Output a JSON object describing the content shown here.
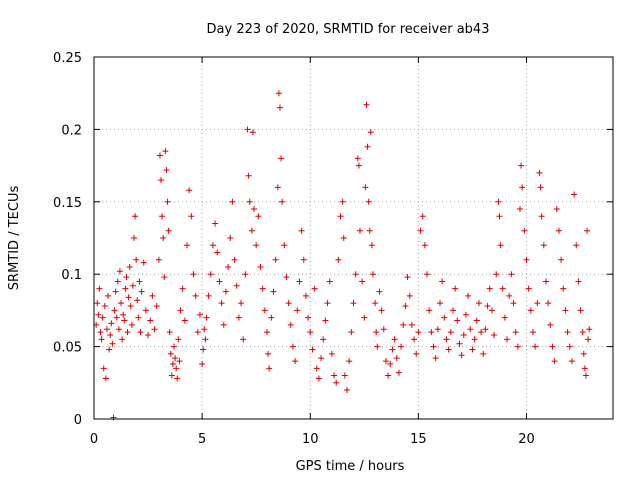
{
  "chart_data": {
    "type": "scatter",
    "title": "Day 223 of 2020, SRMTID for receiver ab43",
    "xlabel": "GPS time / hours",
    "ylabel": "SRMTID / TECUs",
    "xlim": [
      0,
      24
    ],
    "ylim": [
      0,
      0.25
    ],
    "xticks": [
      0,
      5,
      10,
      15,
      20
    ],
    "yticks": [
      0,
      0.05,
      0.1,
      0.15,
      0.2,
      0.25
    ],
    "xtick_labels": [
      "0",
      "5",
      "10",
      "15",
      "20"
    ],
    "ytick_labels": [
      "0",
      "0.05",
      "0.1",
      "0.15",
      "0.2",
      "0.25"
    ],
    "grid": true,
    "marker": "+",
    "color": "#dd0000",
    "series": [
      {
        "name": "SRMTID",
        "points": [
          [
            0.1,
            0.065
          ],
          [
            0.15,
            0.08
          ],
          [
            0.2,
            0.072
          ],
          [
            0.25,
            0.09
          ],
          [
            0.3,
            0.06
          ],
          [
            0.35,
            0.055
          ],
          [
            0.4,
            0.07
          ],
          [
            0.45,
            0.035
          ],
          [
            0.5,
            0.078
          ],
          [
            0.55,
            0.028
          ],
          [
            0.6,
            0.062
          ],
          [
            0.65,
            0.085
          ],
          [
            0.7,
            0.048
          ],
          [
            0.75,
            0.058
          ],
          [
            0.8,
            0.066
          ],
          [
            0.85,
            0.052
          ],
          [
            0.9,
            0.001
          ],
          [
            0.95,
            0.075
          ],
          [
            1.0,
            0.088
          ],
          [
            1.05,
            0.07
          ],
          [
            1.1,
            0.095
          ],
          [
            1.15,
            0.062
          ],
          [
            1.2,
            0.102
          ],
          [
            1.25,
            0.08
          ],
          [
            1.3,
            0.055
          ],
          [
            1.35,
            0.072
          ],
          [
            1.4,
            0.068
          ],
          [
            1.45,
            0.09
          ],
          [
            1.5,
            0.098
          ],
          [
            1.55,
            0.06
          ],
          [
            1.6,
            0.084
          ],
          [
            1.65,
            0.105
          ],
          [
            1.7,
            0.078
          ],
          [
            1.75,
            0.065
          ],
          [
            1.8,
            0.092
          ],
          [
            1.85,
            0.125
          ],
          [
            1.9,
            0.14
          ],
          [
            1.95,
            0.11
          ],
          [
            2.0,
            0.082
          ],
          [
            2.05,
            0.07
          ],
          [
            2.1,
            0.095
          ],
          [
            2.15,
            0.06
          ],
          [
            2.2,
            0.088
          ],
          [
            2.3,
            0.108
          ],
          [
            2.4,
            0.075
          ],
          [
            2.5,
            0.058
          ],
          [
            2.6,
            0.068
          ],
          [
            2.7,
            0.085
          ],
          [
            2.8,
            0.062
          ],
          [
            2.9,
            0.078
          ],
          [
            3.0,
            0.11
          ],
          [
            3.05,
            0.182
          ],
          [
            3.1,
            0.165
          ],
          [
            3.15,
            0.14
          ],
          [
            3.2,
            0.125
          ],
          [
            3.25,
            0.098
          ],
          [
            3.3,
            0.185
          ],
          [
            3.35,
            0.172
          ],
          [
            3.4,
            0.15
          ],
          [
            3.45,
            0.13
          ],
          [
            3.5,
            0.06
          ],
          [
            3.55,
            0.045
          ],
          [
            3.6,
            0.03
          ],
          [
            3.65,
            0.038
          ],
          [
            3.7,
            0.05
          ],
          [
            3.75,
            0.042
          ],
          [
            3.8,
            0.035
          ],
          [
            3.85,
            0.028
          ],
          [
            3.9,
            0.055
          ],
          [
            3.95,
            0.04
          ],
          [
            4.0,
            0.075
          ],
          [
            4.1,
            0.09
          ],
          [
            4.2,
            0.068
          ],
          [
            4.3,
            0.12
          ],
          [
            4.4,
            0.158
          ],
          [
            4.5,
            0.14
          ],
          [
            4.6,
            0.1
          ],
          [
            4.7,
            0.085
          ],
          [
            4.8,
            0.06
          ],
          [
            4.9,
            0.072
          ],
          [
            5.0,
            0.038
          ],
          [
            5.05,
            0.048
          ],
          [
            5.1,
            0.062
          ],
          [
            5.15,
            0.055
          ],
          [
            5.2,
            0.07
          ],
          [
            5.3,
            0.085
          ],
          [
            5.4,
            0.1
          ],
          [
            5.5,
            0.12
          ],
          [
            5.6,
            0.135
          ],
          [
            5.7,
            0.115
          ],
          [
            5.8,
            0.095
          ],
          [
            5.9,
            0.08
          ],
          [
            6.0,
            0.065
          ],
          [
            6.1,
            0.088
          ],
          [
            6.2,
            0.105
          ],
          [
            6.3,
            0.125
          ],
          [
            6.4,
            0.15
          ],
          [
            6.5,
            0.11
          ],
          [
            6.6,
            0.092
          ],
          [
            6.7,
            0.07
          ],
          [
            6.8,
            0.08
          ],
          [
            6.9,
            0.055
          ],
          [
            7.0,
            0.1
          ],
          [
            7.1,
            0.2
          ],
          [
            7.15,
            0.168
          ],
          [
            7.2,
            0.15
          ],
          [
            7.3,
            0.13
          ],
          [
            7.35,
            0.198
          ],
          [
            7.4,
            0.145
          ],
          [
            7.5,
            0.12
          ],
          [
            7.6,
            0.14
          ],
          [
            7.7,
            0.105
          ],
          [
            7.8,
            0.09
          ],
          [
            7.9,
            0.075
          ],
          [
            8.0,
            0.06
          ],
          [
            8.05,
            0.045
          ],
          [
            8.1,
            0.035
          ],
          [
            8.2,
            0.07
          ],
          [
            8.3,
            0.088
          ],
          [
            8.4,
            0.11
          ],
          [
            8.5,
            0.16
          ],
          [
            8.55,
            0.225
          ],
          [
            8.6,
            0.215
          ],
          [
            8.65,
            0.18
          ],
          [
            8.7,
            0.15
          ],
          [
            8.8,
            0.12
          ],
          [
            8.9,
            0.098
          ],
          [
            9.0,
            0.08
          ],
          [
            9.1,
            0.065
          ],
          [
            9.2,
            0.05
          ],
          [
            9.3,
            0.04
          ],
          [
            9.4,
            0.075
          ],
          [
            9.5,
            0.095
          ],
          [
            9.6,
            0.13
          ],
          [
            9.7,
            0.11
          ],
          [
            9.8,
            0.085
          ],
          [
            9.9,
            0.07
          ],
          [
            10.0,
            0.06
          ],
          [
            10.1,
            0.048
          ],
          [
            10.2,
            0.09
          ],
          [
            10.3,
            0.035
          ],
          [
            10.4,
            0.028
          ],
          [
            10.5,
            0.042
          ],
          [
            10.6,
            0.055
          ],
          [
            10.7,
            0.068
          ],
          [
            10.8,
            0.08
          ],
          [
            10.9,
            0.095
          ],
          [
            11.0,
            0.045
          ],
          [
            11.1,
            0.03
          ],
          [
            11.2,
            0.025
          ],
          [
            11.3,
            0.11
          ],
          [
            11.4,
            0.14
          ],
          [
            11.5,
            0.15
          ],
          [
            11.55,
            0.125
          ],
          [
            11.6,
            0.03
          ],
          [
            11.7,
            0.02
          ],
          [
            11.8,
            0.04
          ],
          [
            11.9,
            0.06
          ],
          [
            12.0,
            0.08
          ],
          [
            12.1,
            0.1
          ],
          [
            12.2,
            0.18
          ],
          [
            12.25,
            0.175
          ],
          [
            12.3,
            0.13
          ],
          [
            12.4,
            0.095
          ],
          [
            12.5,
            0.07
          ],
          [
            12.55,
            0.16
          ],
          [
            12.6,
            0.217
          ],
          [
            12.65,
            0.188
          ],
          [
            12.7,
            0.15
          ],
          [
            12.75,
            0.13
          ],
          [
            12.8,
            0.198
          ],
          [
            12.85,
            0.12
          ],
          [
            12.9,
            0.1
          ],
          [
            13.0,
            0.08
          ],
          [
            13.05,
            0.06
          ],
          [
            13.1,
            0.05
          ],
          [
            13.2,
            0.088
          ],
          [
            13.3,
            0.075
          ],
          [
            13.4,
            0.062
          ],
          [
            13.5,
            0.04
          ],
          [
            13.6,
            0.03
          ],
          [
            13.7,
            0.038
          ],
          [
            13.8,
            0.048
          ],
          [
            13.9,
            0.055
          ],
          [
            14.0,
            0.042
          ],
          [
            14.1,
            0.032
          ],
          [
            14.2,
            0.05
          ],
          [
            14.3,
            0.065
          ],
          [
            14.4,
            0.078
          ],
          [
            14.5,
            0.098
          ],
          [
            14.6,
            0.085
          ],
          [
            14.7,
            0.065
          ],
          [
            14.8,
            0.055
          ],
          [
            14.9,
            0.045
          ],
          [
            15.0,
            0.06
          ],
          [
            15.1,
            0.13
          ],
          [
            15.2,
            0.14
          ],
          [
            15.3,
            0.12
          ],
          [
            15.4,
            0.1
          ],
          [
            15.5,
            0.075
          ],
          [
            15.6,
            0.06
          ],
          [
            15.7,
            0.05
          ],
          [
            15.8,
            0.042
          ],
          [
            15.9,
            0.062
          ],
          [
            16.0,
            0.08
          ],
          [
            16.1,
            0.095
          ],
          [
            16.2,
            0.07
          ],
          [
            16.3,
            0.055
          ],
          [
            16.4,
            0.048
          ],
          [
            16.5,
            0.06
          ],
          [
            16.6,
            0.075
          ],
          [
            16.7,
            0.09
          ],
          [
            16.8,
            0.068
          ],
          [
            16.9,
            0.052
          ],
          [
            17.0,
            0.044
          ],
          [
            17.1,
            0.058
          ],
          [
            17.2,
            0.072
          ],
          [
            17.3,
            0.085
          ],
          [
            17.4,
            0.062
          ],
          [
            17.5,
            0.048
          ],
          [
            17.6,
            0.055
          ],
          [
            17.7,
            0.068
          ],
          [
            17.8,
            0.08
          ],
          [
            17.9,
            0.06
          ],
          [
            18.0,
            0.045
          ],
          [
            18.1,
            0.062
          ],
          [
            18.2,
            0.078
          ],
          [
            18.3,
            0.09
          ],
          [
            18.4,
            0.075
          ],
          [
            18.5,
            0.058
          ],
          [
            18.6,
            0.1
          ],
          [
            18.7,
            0.15
          ],
          [
            18.75,
            0.14
          ],
          [
            18.8,
            0.12
          ],
          [
            18.9,
            0.09
          ],
          [
            19.0,
            0.07
          ],
          [
            19.1,
            0.055
          ],
          [
            19.2,
            0.085
          ],
          [
            19.3,
            0.1
          ],
          [
            19.4,
            0.08
          ],
          [
            19.5,
            0.06
          ],
          [
            19.6,
            0.05
          ],
          [
            19.7,
            0.145
          ],
          [
            19.75,
            0.175
          ],
          [
            19.8,
            0.16
          ],
          [
            19.9,
            0.13
          ],
          [
            20.0,
            0.11
          ],
          [
            20.1,
            0.09
          ],
          [
            20.2,
            0.075
          ],
          [
            20.3,
            0.06
          ],
          [
            20.4,
            0.05
          ],
          [
            20.5,
            0.08
          ],
          [
            20.6,
            0.17
          ],
          [
            20.65,
            0.16
          ],
          [
            20.7,
            0.14
          ],
          [
            20.8,
            0.12
          ],
          [
            20.9,
            0.095
          ],
          [
            21.0,
            0.08
          ],
          [
            21.1,
            0.065
          ],
          [
            21.2,
            0.05
          ],
          [
            21.3,
            0.04
          ],
          [
            21.4,
            0.145
          ],
          [
            21.5,
            0.13
          ],
          [
            21.6,
            0.11
          ],
          [
            21.7,
            0.09
          ],
          [
            21.8,
            0.075
          ],
          [
            21.9,
            0.06
          ],
          [
            22.0,
            0.05
          ],
          [
            22.1,
            0.04
          ],
          [
            22.2,
            0.155
          ],
          [
            22.3,
            0.12
          ],
          [
            22.4,
            0.095
          ],
          [
            22.5,
            0.075
          ],
          [
            22.6,
            0.06
          ],
          [
            22.65,
            0.045
          ],
          [
            22.7,
            0.035
          ],
          [
            22.75,
            0.03
          ],
          [
            22.8,
            0.13
          ],
          [
            22.85,
            0.055
          ],
          [
            22.9,
            0.062
          ]
        ]
      }
    ]
  }
}
